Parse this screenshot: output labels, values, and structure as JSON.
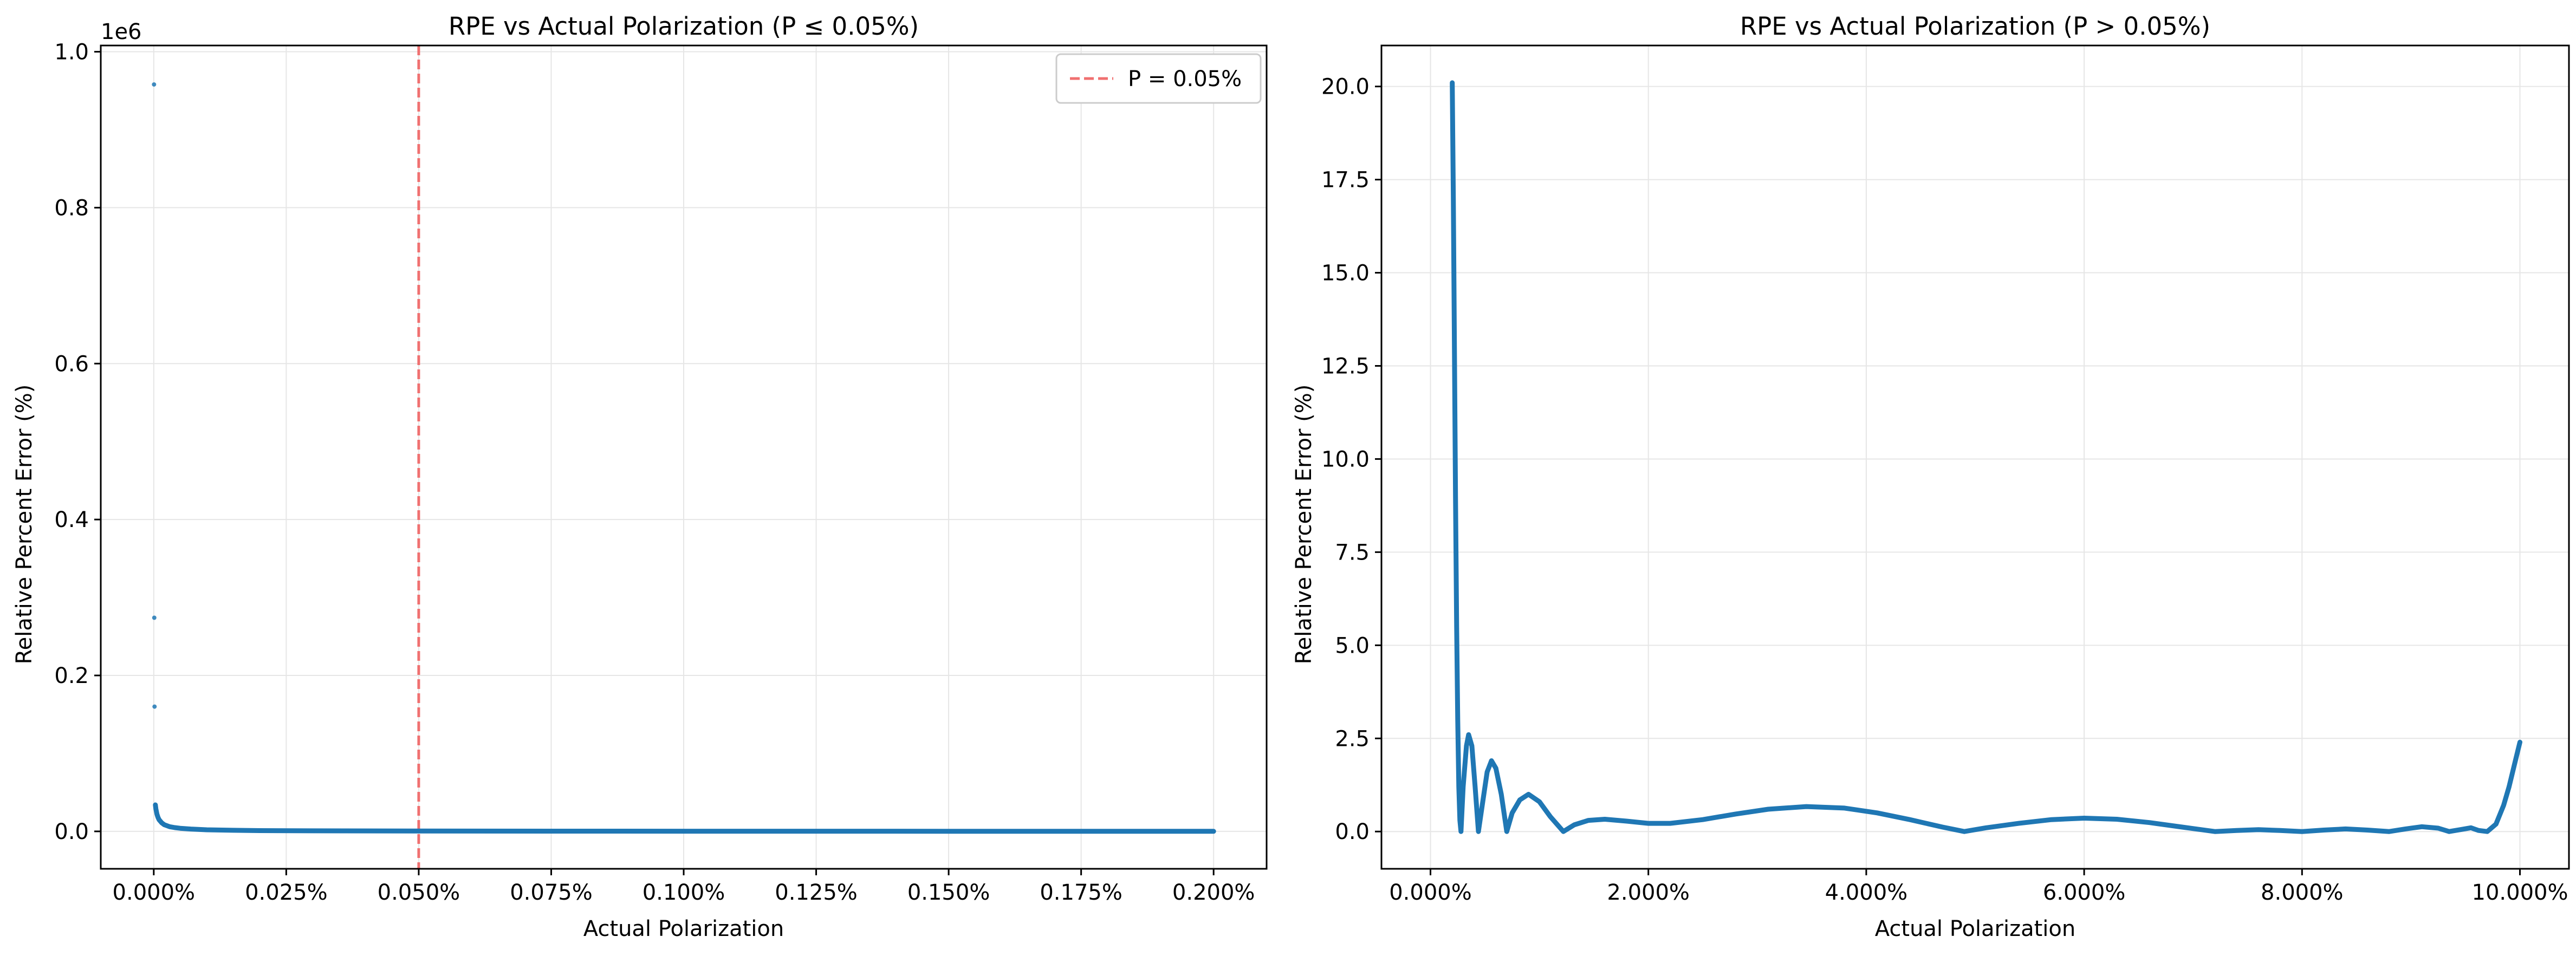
{
  "chart_data": [
    {
      "type": "scatter",
      "title": "RPE vs Actual Polarization (P ≤ 0.05%)",
      "xlabel": "Actual Polarization",
      "ylabel": "Relative Percent Error (%)",
      "xlim": [
        -0.0001,
        0.0021
      ],
      "ylim": [
        -48000,
        1008000
      ],
      "x_ticks": [
        0,
        0.00025,
        0.0005,
        0.00075,
        0.001,
        0.00125,
        0.0015,
        0.00175,
        0.002
      ],
      "x_tick_labels": [
        "0.000%",
        "0.025%",
        "0.050%",
        "0.075%",
        "0.100%",
        "0.125%",
        "0.150%",
        "0.175%",
        "0.200%"
      ],
      "y_ticks": [
        0,
        200000,
        400000,
        600000,
        800000,
        1000000
      ],
      "y_tick_labels": [
        "0.0",
        "0.2",
        "0.4",
        "0.6",
        "0.8",
        "1.0"
      ],
      "y_offset_text": "1e6",
      "grid": true,
      "legend_position": "top-right",
      "reference_lines": [
        {
          "name": "P = 0.05%",
          "x": 0.0005,
          "color": "#f07070",
          "style": "dashed"
        }
      ],
      "series": [
        {
          "color": "#1f77b4",
          "points": [
            [
              5e-07,
              958000
            ],
            [
              1e-06,
              274000
            ],
            [
              1.5e-06,
              160000
            ],
            [
              3e-06,
              34000
            ],
            [
              4e-06,
              29000
            ],
            [
              6e-06,
              22000
            ],
            [
              8e-06,
              18000
            ],
            [
              1e-05,
              15000
            ],
            [
              1.5e-05,
              11000
            ],
            [
              2e-05,
              8500
            ],
            [
              3e-05,
              6000
            ],
            [
              4e-05,
              4800
            ],
            [
              5e-05,
              4000
            ],
            [
              7e-05,
              3000
            ],
            [
              0.0001,
              2000
            ],
            [
              0.00015,
              1400
            ],
            [
              0.0002,
              1000
            ],
            [
              0.0003,
              700
            ],
            [
              0.0005,
              400
            ],
            [
              0.001,
              200
            ],
            [
              0.0015,
              120
            ],
            [
              0.002,
              80
            ]
          ]
        }
      ]
    },
    {
      "type": "line",
      "title": "RPE vs Actual Polarization (P > 0.05%)",
      "xlabel": "Actual Polarization",
      "ylabel": "Relative Percent Error (%)",
      "xlim": [
        -0.0045,
        0.1045
      ],
      "ylim": [
        -1.0,
        21.1
      ],
      "x_ticks": [
        0,
        0.02,
        0.04,
        0.06,
        0.08,
        0.1
      ],
      "x_tick_labels": [
        "0.000%",
        "2.000%",
        "4.000%",
        "6.000%",
        "8.000%",
        "10.000%"
      ],
      "y_ticks": [
        0,
        2.5,
        5.0,
        7.5,
        10.0,
        12.5,
        15.0,
        17.5,
        20.0
      ],
      "y_tick_labels": [
        "0.0",
        "2.5",
        "5.0",
        "7.5",
        "10.0",
        "12.5",
        "15.0",
        "17.5",
        "20.0"
      ],
      "grid": true,
      "series": [
        {
          "color": "#1f77b4",
          "points": [
            [
              0.002,
              20.1
            ],
            [
              0.0021,
              17.0
            ],
            [
              0.0022,
              13.0
            ],
            [
              0.0023,
              9.0
            ],
            [
              0.0024,
              5.5
            ],
            [
              0.0025,
              3.0
            ],
            [
              0.0026,
              1.2
            ],
            [
              0.0027,
              0.3
            ],
            [
              0.0028,
              0.0
            ],
            [
              0.003,
              1.2
            ],
            [
              0.0033,
              2.3
            ],
            [
              0.0035,
              2.6
            ],
            [
              0.0038,
              2.3
            ],
            [
              0.0041,
              1.2
            ],
            [
              0.0044,
              0.0
            ],
            [
              0.0048,
              0.8
            ],
            [
              0.0052,
              1.6
            ],
            [
              0.0056,
              1.9
            ],
            [
              0.006,
              1.7
            ],
            [
              0.0065,
              1.0
            ],
            [
              0.007,
              0.0
            ],
            [
              0.0075,
              0.5
            ],
            [
              0.0082,
              0.85
            ],
            [
              0.009,
              1.0
            ],
            [
              0.01,
              0.8
            ],
            [
              0.011,
              0.4
            ],
            [
              0.0122,
              0.0
            ],
            [
              0.0132,
              0.18
            ],
            [
              0.0145,
              0.3
            ],
            [
              0.016,
              0.33
            ],
            [
              0.018,
              0.28
            ],
            [
              0.02,
              0.22
            ],
            [
              0.022,
              0.22
            ],
            [
              0.025,
              0.32
            ],
            [
              0.028,
              0.47
            ],
            [
              0.031,
              0.6
            ],
            [
              0.0345,
              0.67
            ],
            [
              0.038,
              0.63
            ],
            [
              0.041,
              0.5
            ],
            [
              0.044,
              0.32
            ],
            [
              0.047,
              0.12
            ],
            [
              0.049,
              0.0
            ],
            [
              0.051,
              0.1
            ],
            [
              0.054,
              0.22
            ],
            [
              0.057,
              0.32
            ],
            [
              0.06,
              0.36
            ],
            [
              0.063,
              0.33
            ],
            [
              0.066,
              0.24
            ],
            [
              0.069,
              0.12
            ],
            [
              0.072,
              0.0
            ],
            [
              0.074,
              0.03
            ],
            [
              0.076,
              0.05
            ],
            [
              0.078,
              0.03
            ],
            [
              0.08,
              0.0
            ],
            [
              0.082,
              0.04
            ],
            [
              0.084,
              0.07
            ],
            [
              0.086,
              0.04
            ],
            [
              0.088,
              0.0
            ],
            [
              0.0895,
              0.07
            ],
            [
              0.091,
              0.13
            ],
            [
              0.0925,
              0.09
            ],
            [
              0.0935,
              0.0
            ],
            [
              0.0945,
              0.05
            ],
            [
              0.0955,
              0.1
            ],
            [
              0.0962,
              0.03
            ],
            [
              0.097,
              0.0
            ],
            [
              0.0978,
              0.2
            ],
            [
              0.0985,
              0.7
            ],
            [
              0.099,
              1.2
            ],
            [
              0.0995,
              1.8
            ],
            [
              0.1,
              2.4
            ]
          ]
        }
      ]
    }
  ]
}
